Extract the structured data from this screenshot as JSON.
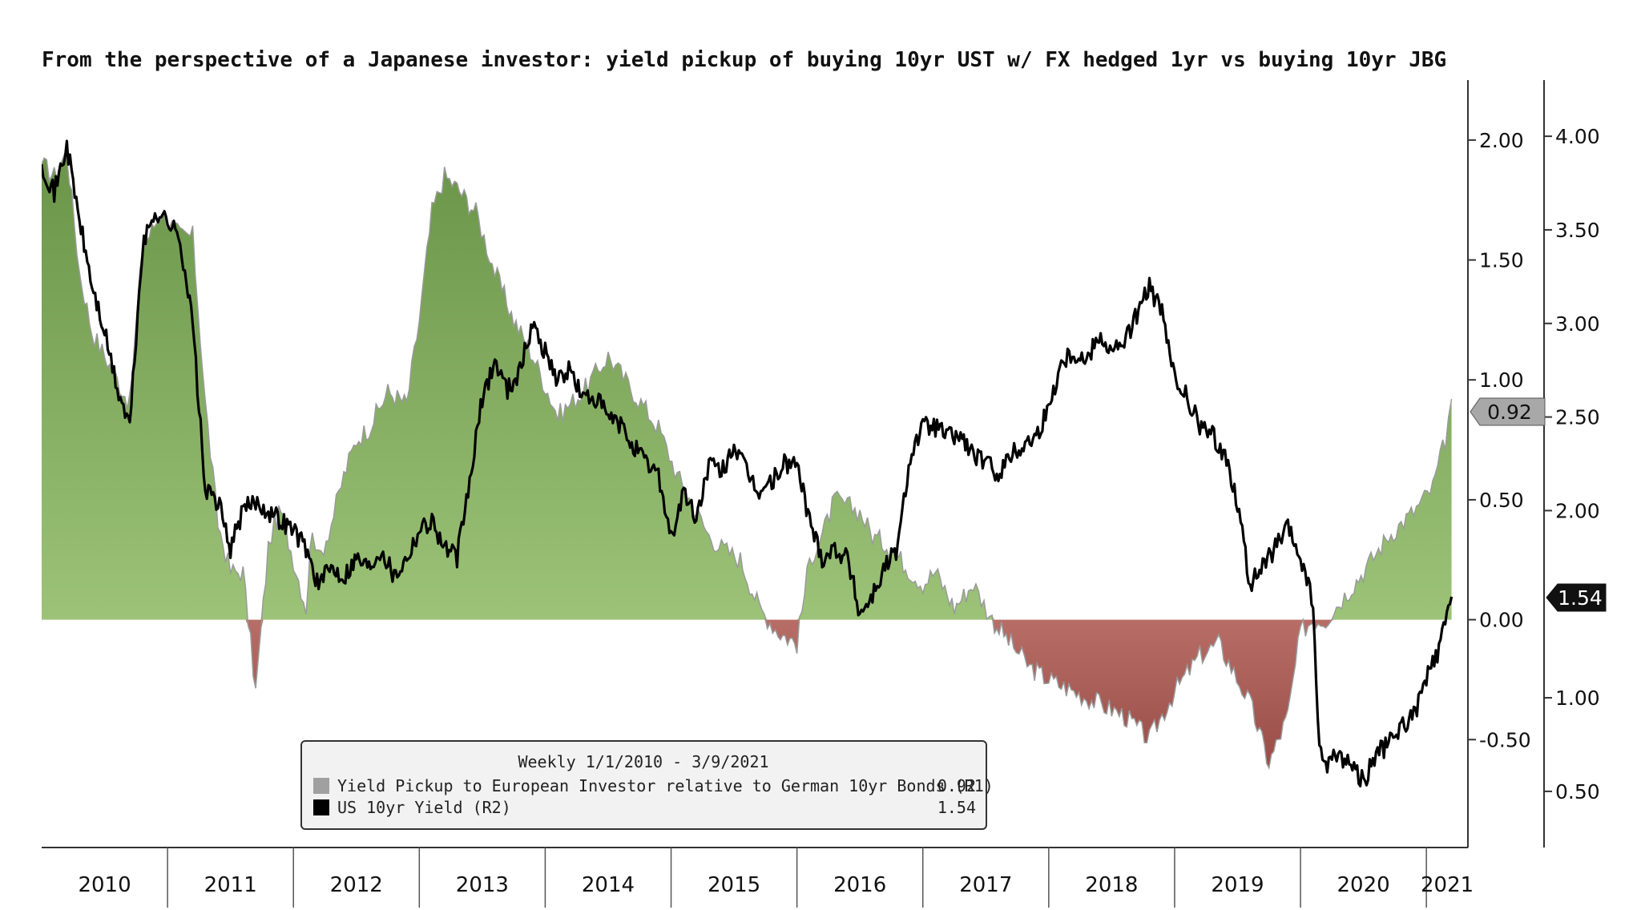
{
  "chart_data": {
    "type": "area",
    "title": "From the perspective of a Japanese investor: yield pickup of buying 10yr UST w/ FX hedged 1yr vs buying 10yr JBG",
    "x_categories": [
      "2010",
      "2011",
      "2012",
      "2013",
      "2014",
      "2015",
      "2016",
      "2017",
      "2018",
      "2019",
      "2020",
      "2021"
    ],
    "xlim": [
      2010.0,
      2021.33
    ],
    "left_axis_ticks": [],
    "r1_axis": {
      "ylim": [
        -0.95,
        2.25
      ],
      "ticks": [
        "2.00",
        "1.50",
        "1.00",
        "0.50",
        "0.00",
        "-0.50"
      ],
      "tick_values": [
        2.0,
        1.5,
        1.0,
        0.5,
        0.0,
        -0.5
      ]
    },
    "r2_axis": {
      "ylim": [
        0.2,
        4.3
      ],
      "ticks": [
        "4.00",
        "3.50",
        "3.00",
        "2.50",
        "2.00",
        "1.00",
        "0.50"
      ],
      "tick_values": [
        4.0,
        3.5,
        3.0,
        2.5,
        2.0,
        1.0,
        0.5
      ]
    },
    "series": [
      {
        "name": "Yield Pickup to European Investor relative to German 10yr Bonds (R1)",
        "axis": "R1",
        "style": "area",
        "last_value": "0.92",
        "x": [
          2010.0,
          2010.1,
          2010.2,
          2010.3,
          2010.4,
          2010.5,
          2010.6,
          2010.7,
          2010.8,
          2010.95,
          2011.1,
          2011.2,
          2011.3,
          2011.4,
          2011.5,
          2011.6,
          2011.7,
          2011.8,
          2011.85,
          2011.9,
          2012.0,
          2012.1,
          2012.15,
          2012.2,
          2012.3,
          2012.4,
          2012.5,
          2012.6,
          2012.75,
          2012.9,
          2013.0,
          2013.1,
          2013.2,
          2013.3,
          2013.45,
          2013.6,
          2013.75,
          2013.9,
          2014.1,
          2014.3,
          2014.5,
          2014.7,
          2014.9,
          2015.05,
          2015.2,
          2015.3,
          2015.4,
          2015.55,
          2015.7,
          2015.85,
          2016.0,
          2016.1,
          2016.2,
          2016.3,
          2016.5,
          2016.6,
          2016.75,
          2016.9,
          2017.0,
          2017.1,
          2017.25,
          2017.4,
          2017.55,
          2017.7,
          2017.85,
          2018.0,
          2018.2,
          2018.4,
          2018.6,
          2018.8,
          2019.0,
          2019.2,
          2019.35,
          2019.45,
          2019.6,
          2019.75,
          2019.9,
          2020.0,
          2020.1,
          2020.2,
          2020.35,
          2020.5,
          2020.7,
          2020.9,
          2021.05,
          2021.15,
          2021.2
        ],
        "values": [
          1.9,
          1.85,
          1.95,
          1.45,
          1.2,
          1.1,
          1.0,
          0.9,
          1.55,
          1.7,
          1.6,
          1.6,
          0.9,
          0.4,
          0.2,
          0.2,
          -0.3,
          0.3,
          0.4,
          0.45,
          0.25,
          0.05,
          0.4,
          0.25,
          0.4,
          0.6,
          0.75,
          0.8,
          0.95,
          0.9,
          1.25,
          1.7,
          1.85,
          1.8,
          1.7,
          1.45,
          1.25,
          1.1,
          0.85,
          0.95,
          1.1,
          0.95,
          0.8,
          0.6,
          0.45,
          0.35,
          0.3,
          0.25,
          0.05,
          -0.05,
          -0.1,
          0.25,
          0.35,
          0.5,
          0.45,
          0.35,
          0.3,
          0.2,
          0.15,
          0.2,
          0.05,
          0.15,
          0.0,
          -0.1,
          -0.2,
          -0.25,
          -0.3,
          -0.35,
          -0.4,
          -0.5,
          -0.3,
          -0.15,
          -0.1,
          -0.2,
          -0.35,
          -0.6,
          -0.4,
          -0.05,
          0.0,
          0.0,
          0.1,
          0.2,
          0.35,
          0.45,
          0.55,
          0.75,
          0.92
        ]
      },
      {
        "name": "US 10yr Yield (R2)",
        "axis": "R2",
        "style": "line",
        "last_value": "1.54",
        "x": [
          2010.0,
          2010.1,
          2010.2,
          2010.3,
          2010.4,
          2010.5,
          2010.6,
          2010.7,
          2010.8,
          2010.9,
          2011.0,
          2011.1,
          2011.2,
          2011.3,
          2011.4,
          2011.5,
          2011.6,
          2011.7,
          2011.8,
          2011.9,
          2012.0,
          2012.1,
          2012.2,
          2012.3,
          2012.4,
          2012.5,
          2012.6,
          2012.7,
          2012.8,
          2012.9,
          2013.0,
          2013.1,
          2013.2,
          2013.3,
          2013.4,
          2013.5,
          2013.6,
          2013.7,
          2013.8,
          2013.9,
          2014.0,
          2014.1,
          2014.2,
          2014.3,
          2014.4,
          2014.5,
          2014.6,
          2014.7,
          2014.8,
          2014.9,
          2015.0,
          2015.1,
          2015.2,
          2015.3,
          2015.4,
          2015.5,
          2015.6,
          2015.7,
          2015.8,
          2015.9,
          2016.0,
          2016.1,
          2016.2,
          2016.3,
          2016.4,
          2016.5,
          2016.6,
          2016.7,
          2016.8,
          2016.9,
          2017.0,
          2017.1,
          2017.2,
          2017.3,
          2017.4,
          2017.5,
          2017.6,
          2017.7,
          2017.8,
          2017.9,
          2018.0,
          2018.1,
          2018.2,
          2018.3,
          2018.4,
          2018.5,
          2018.6,
          2018.7,
          2018.8,
          2018.9,
          2019.0,
          2019.1,
          2019.2,
          2019.3,
          2019.4,
          2019.5,
          2019.6,
          2019.7,
          2019.8,
          2019.9,
          2020.0,
          2020.1,
          2020.15,
          2020.2,
          2020.3,
          2020.4,
          2020.5,
          2020.6,
          2020.7,
          2020.8,
          2020.9,
          2021.0,
          2021.1,
          2021.15,
          2021.2
        ],
        "values": [
          3.85,
          3.7,
          3.95,
          3.55,
          3.2,
          2.95,
          2.65,
          2.45,
          3.4,
          3.6,
          3.55,
          3.45,
          3.0,
          2.1,
          2.05,
          1.8,
          2.0,
          2.05,
          2.0,
          1.95,
          1.9,
          1.8,
          1.6,
          1.7,
          1.65,
          1.75,
          1.7,
          1.8,
          1.65,
          1.75,
          1.9,
          1.95,
          1.8,
          1.75,
          2.15,
          2.6,
          2.8,
          2.65,
          2.75,
          3.0,
          2.85,
          2.7,
          2.75,
          2.6,
          2.6,
          2.5,
          2.45,
          2.35,
          2.25,
          2.2,
          1.85,
          2.1,
          1.95,
          2.25,
          2.2,
          2.35,
          2.2,
          2.1,
          2.15,
          2.25,
          2.25,
          1.95,
          1.75,
          1.8,
          1.75,
          1.45,
          1.55,
          1.7,
          1.8,
          2.3,
          2.45,
          2.45,
          2.4,
          2.4,
          2.3,
          2.25,
          2.2,
          2.3,
          2.35,
          2.4,
          2.55,
          2.8,
          2.85,
          2.8,
          2.95,
          2.85,
          2.9,
          3.05,
          3.2,
          3.05,
          2.7,
          2.6,
          2.45,
          2.4,
          2.3,
          2.05,
          1.6,
          1.7,
          1.8,
          1.9,
          1.75,
          1.5,
          0.7,
          0.65,
          0.7,
          0.65,
          0.55,
          0.7,
          0.75,
          0.85,
          0.9,
          1.1,
          1.25,
          1.4,
          1.54
        ]
      }
    ],
    "legend": {
      "placement": "bottom-center",
      "header": "Weekly 1/1/2010 - 3/9/2021",
      "entries": [
        {
          "label": "Yield Pickup to European Investor relative to German 10yr Bonds (R1)",
          "value": "0.92",
          "swatch": "#a0a0a0"
        },
        {
          "label": "US 10yr Yield (R2)",
          "value": "1.54",
          "swatch": "#000000"
        }
      ]
    },
    "colors": {
      "positive_area": "#8fba6a",
      "positive_area_top": "#6e9a4c",
      "negative_area": "#a85c56",
      "line": "#000000"
    }
  }
}
